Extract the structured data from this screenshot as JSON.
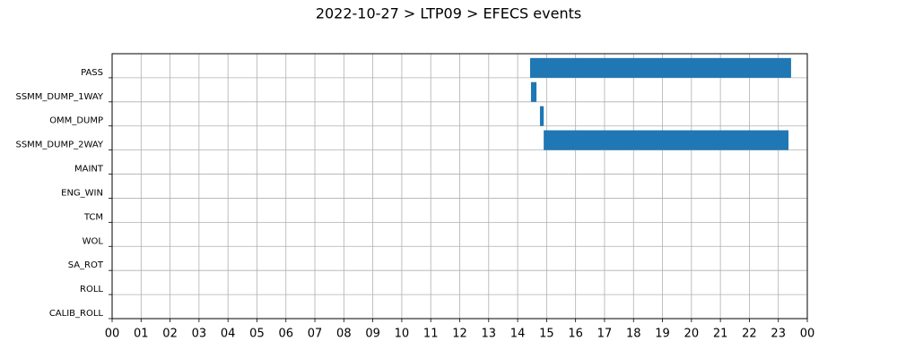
{
  "chart_data": {
    "type": "gantt",
    "title": "2022-10-27 > LTP09 > EFECS events",
    "categories": [
      "CALIB_ROLL",
      "ROLL",
      "SA_ROT",
      "WOL",
      "TCM",
      "ENG_WIN",
      "MAINT",
      "SSMM_DUMP_2WAY",
      "OMM_DUMP",
      "SSMM_DUMP_1WAY",
      "PASS"
    ],
    "starts": [
      null,
      null,
      null,
      null,
      null,
      null,
      null,
      14.9,
      14.77,
      14.46,
      14.43
    ],
    "ends": [
      null,
      null,
      null,
      null,
      null,
      null,
      null,
      23.35,
      14.9,
      14.65,
      23.44
    ],
    "color": "#1f77b4",
    "xlim": [
      0,
      24
    ],
    "xticks": [
      {
        "value": 0,
        "label": "00"
      },
      {
        "value": 1,
        "label": "01"
      },
      {
        "value": 2,
        "label": "02"
      },
      {
        "value": 3,
        "label": "03"
      },
      {
        "value": 4,
        "label": "04"
      },
      {
        "value": 5,
        "label": "05"
      },
      {
        "value": 6,
        "label": "06"
      },
      {
        "value": 7,
        "label": "07"
      },
      {
        "value": 8,
        "label": "08"
      },
      {
        "value": 9,
        "label": "09"
      },
      {
        "value": 10,
        "label": "10"
      },
      {
        "value": 11,
        "label": "11"
      },
      {
        "value": 12,
        "label": "12"
      },
      {
        "value": 13,
        "label": "13"
      },
      {
        "value": 14,
        "label": "14"
      },
      {
        "value": 15,
        "label": "15"
      },
      {
        "value": 16,
        "label": "16"
      },
      {
        "value": 17,
        "label": "17"
      },
      {
        "value": 18,
        "label": "18"
      },
      {
        "value": 19,
        "label": "19"
      },
      {
        "value": 20,
        "label": "20"
      },
      {
        "value": 21,
        "label": "21"
      },
      {
        "value": 22,
        "label": "22"
      },
      {
        "value": 23,
        "label": "23"
      },
      {
        "value": 24,
        "label": "00"
      }
    ],
    "grid": true
  }
}
